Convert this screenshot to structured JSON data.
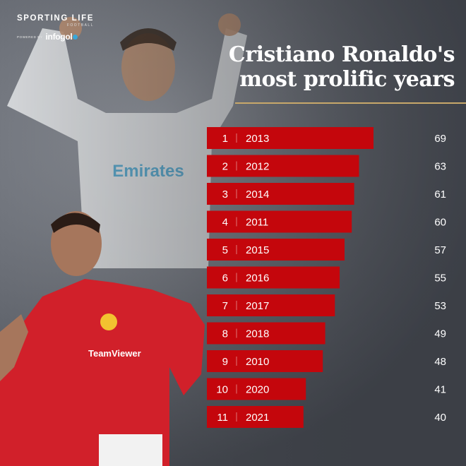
{
  "brand": {
    "name": "SPORTING LIFE",
    "section": "FOOTBALL",
    "powered_by": "POWERED BY",
    "partner": "infogol"
  },
  "title_lines": [
    "Cristiano Ronaldo's",
    "most prolific years"
  ],
  "colors": {
    "bar": "#c4060c",
    "title": "#ffffff",
    "rule": "#c8a86a",
    "background": "#5f636b"
  },
  "chart_data": {
    "type": "bar",
    "orientation": "horizontal",
    "ranks": [
      "1",
      "2",
      "3",
      "4",
      "5",
      "6",
      "7",
      "8",
      "9",
      "10",
      "11"
    ],
    "categories": [
      "2013",
      "2012",
      "2014",
      "2011",
      "2015",
      "2016",
      "2017",
      "2018",
      "2010",
      "2020",
      "2021"
    ],
    "values": [
      69,
      63,
      61,
      60,
      57,
      55,
      53,
      49,
      48,
      41,
      40
    ],
    "value_labels": [
      "69",
      "63",
      "61",
      "60",
      "57",
      "55",
      "53",
      "49",
      "48",
      "41",
      "40"
    ]
  }
}
